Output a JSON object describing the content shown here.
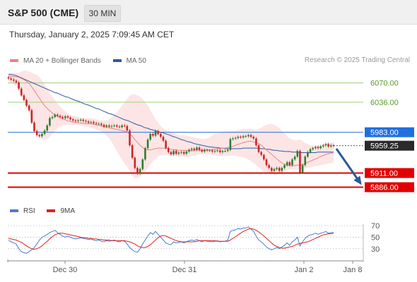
{
  "header": {
    "title": "S&P 500 (CME)",
    "timeframe_label": "30 MIN"
  },
  "timestamp": "Thursday, January 2, 2025 7:09:45 AM CET",
  "legend": {
    "items": [
      {
        "label": "MA 20 + Bollinger Bands",
        "color": "#f08080"
      },
      {
        "label": "MA 50",
        "color": "#2d5aa0"
      }
    ]
  },
  "credit": "Research © 2025 Trading Central",
  "rsi_legend": {
    "items": [
      {
        "label": "RSI",
        "color": "#4a7bd0"
      },
      {
        "label": "9MA",
        "color": "#e02020"
      }
    ]
  },
  "colors": {
    "candle_up": "#2e7d32",
    "candle_down": "#c62828",
    "bollinger_fill": "#fde0e0",
    "ma20": "#f08080",
    "ma50": "#2d5aa0",
    "level_green": "#9bd27a",
    "level_blue": "#2d6ed0",
    "level_red": "#e00000",
    "arrow": "#2a5a9c"
  },
  "chart_data": [
    {
      "type": "candlestick",
      "title": "",
      "x_tick_labels": [
        "Dec 30",
        "Dec 31",
        "Jan 2",
        "Jan 8"
      ],
      "ylim": [
        5868,
        6092
      ],
      "levels": [
        {
          "value": 6070.0,
          "label": "6070.00",
          "style": "green-line"
        },
        {
          "value": 6036.0,
          "label": "6036.00",
          "style": "green-line"
        },
        {
          "value": 5983.0,
          "label": "5983.00",
          "style": "blue-box"
        },
        {
          "value": 5959.25,
          "label": "5959.25",
          "style": "dark-box"
        },
        {
          "value": 5911.0,
          "label": "5911.00",
          "style": "red-box"
        },
        {
          "value": 5886.0,
          "label": "5886.00",
          "style": "red-box"
        }
      ],
      "close": [
        6078,
        6076,
        6074,
        6071,
        6060,
        6048,
        6040,
        6030,
        6022,
        6000,
        5985,
        5978,
        5976,
        5980,
        5986,
        5995,
        6008,
        6010,
        6014,
        6012,
        6010,
        6008,
        6011,
        6009,
        6006,
        6004,
        6003,
        6004,
        6005,
        6003,
        6002,
        6000,
        6001,
        5999,
        5998,
        5998,
        5996,
        5993,
        5995,
        5993,
        5994,
        5995,
        5993,
        5992,
        5995,
        5994,
        5986,
        5960,
        5938,
        5920,
        5910,
        5918,
        5935,
        5955,
        5970,
        5980,
        5977,
        5985,
        5980,
        5975,
        5968,
        5955,
        5948,
        5944,
        5950,
        5945,
        5947,
        5948,
        5945,
        5949,
        5952,
        5954,
        5952,
        5956,
        5952,
        5949,
        5952,
        5951,
        5951,
        5949,
        5950,
        5951,
        5948,
        5950,
        5950,
        5952,
        5971,
        5972,
        5973,
        5975,
        5974,
        5976,
        5976,
        5978,
        5975,
        5972,
        5960,
        5948,
        5943,
        5935,
        5925,
        5920,
        5915,
        5918,
        5920,
        5915,
        5920,
        5925,
        5930,
        5925,
        5935,
        5940,
        5950,
        5912,
        5925,
        5940,
        5948,
        5953,
        5955,
        5957,
        5955,
        5958,
        5960,
        5962,
        5958,
        5960,
        5959.25
      ],
      "ma20": [
        6082,
        6082,
        6081,
        6081,
        6080,
        6078,
        6076,
        6073,
        6069,
        6063,
        6057,
        6050,
        6043,
        6036,
        6030,
        6025,
        6021,
        6017,
        6014,
        6011,
        6009,
        6007,
        6005,
        6003,
        6002,
        6001,
        6000,
        6000,
        5999,
        5999,
        5998,
        5998,
        5998,
        5997,
        5996,
        5995,
        5994,
        5993,
        5992,
        5991,
        5990,
        5989,
        5988,
        5987,
        5986,
        5985,
        5983,
        5980,
        5976,
        5970,
        5965,
        5960,
        5956,
        5953,
        5952,
        5952,
        5953,
        5954,
        5955,
        5955,
        5955,
        5955,
        5954,
        5953,
        5952,
        5952,
        5951,
        5951,
        5951,
        5951,
        5951,
        5950,
        5951,
        5952,
        5951,
        5951,
        5952,
        5952,
        5952,
        5953,
        5953,
        5954,
        5954,
        5955,
        5955,
        5956,
        5957,
        5958,
        5960,
        5962,
        5963,
        5965,
        5966,
        5967,
        5967,
        5966,
        5965,
        5963,
        5960,
        5956,
        5952,
        5948,
        5944,
        5940,
        5936,
        5932,
        5929,
        5926,
        5925,
        5924,
        5924,
        5924,
        5925,
        5925,
        5926,
        5928,
        5930,
        5932,
        5934,
        5936,
        5938,
        5940,
        5942,
        5944,
        5945,
        5946,
        5947
      ],
      "bb_upper": [
        6088,
        6088,
        6088,
        6088,
        6088,
        6090,
        6092,
        6092,
        6090,
        6088,
        6086,
        6084,
        6080,
        6075,
        6068,
        6060,
        6052,
        6046,
        6040,
        6034,
        6028,
        6024,
        6020,
        6016,
        6013,
        6012,
        6011,
        6010,
        6009,
        6008,
        6008,
        6008,
        6008,
        6007,
        6006,
        6005,
        6004,
        6003,
        6004,
        6006,
        6010,
        6014,
        6018,
        6024,
        6030,
        6036,
        6042,
        6048,
        6050,
        6050,
        6048,
        6046,
        6042,
        6036,
        6030,
        6022,
        6014,
        6006,
        6000,
        5994,
        5990,
        5987,
        5985,
        5984,
        5982,
        5980,
        5978,
        5978,
        5978,
        5977,
        5976,
        5975,
        5974,
        5973,
        5972,
        5971,
        5971,
        5972,
        5974,
        5978,
        5980,
        5981,
        5982,
        5983,
        5984,
        5985,
        5985,
        5985,
        5986,
        5987,
        5988,
        5989,
        5989,
        5989,
        5989,
        5988,
        5987,
        5989,
        5991,
        5994,
        5996,
        5997,
        5998,
        5996,
        5994,
        5990,
        5986,
        5981,
        5976,
        5972,
        5970,
        5969,
        5969,
        5970,
        5968,
        5964,
        5962,
        5960,
        5959,
        5959,
        5960,
        5961,
        5962,
        5963,
        5964,
        5965,
        5966
      ],
      "bb_lower": [
        6072,
        6070,
        6068,
        6064,
        6058,
        6050,
        6040,
        6030,
        6018,
        6004,
        5992,
        5982,
        5974,
        5970,
        5969,
        5971,
        5975,
        5980,
        5986,
        5990,
        5993,
        5995,
        5996,
        5996,
        5996,
        5996,
        5996,
        5995,
        5995,
        5994,
        5993,
        5992,
        5991,
        5990,
        5988,
        5986,
        5984,
        5981,
        5977,
        5972,
        5966,
        5958,
        5950,
        5942,
        5934,
        5928,
        5922,
        5914,
        5906,
        5902,
        5902,
        5904,
        5908,
        5914,
        5920,
        5926,
        5932,
        5937,
        5940,
        5942,
        5943,
        5943,
        5943,
        5943,
        5942,
        5941,
        5940,
        5940,
        5940,
        5940,
        5940,
        5941,
        5942,
        5943,
        5944,
        5944,
        5944,
        5944,
        5944,
        5943,
        5942,
        5941,
        5941,
        5941,
        5941,
        5941,
        5942,
        5942,
        5942,
        5941,
        5940,
        5939,
        5937,
        5935,
        5932,
        5929,
        5925,
        5921,
        5917,
        5914,
        5912,
        5910,
        5909,
        5908,
        5908,
        5909,
        5911,
        5914,
        5916,
        5917,
        5917,
        5917,
        5917,
        5917,
        5918,
        5919,
        5920,
        5921,
        5922,
        5923,
        5924,
        5925,
        5926,
        5927,
        5928,
        5929,
        5930
      ],
      "ma50": [
        6085,
        6085,
        6084,
        6083,
        6081,
        6079,
        6077,
        6075,
        6073,
        6071,
        6069,
        6067,
        6065,
        6063,
        6061,
        6059,
        6057,
        6055,
        6053,
        6052,
        6050,
        6048,
        6046,
        6045,
        6043,
        6041,
        6039,
        6038,
        6036,
        6034,
        6032,
        6031,
        6029,
        6027,
        6025,
        6024,
        6022,
        6020,
        6018,
        6016,
        6015,
        6013,
        6011,
        6009,
        6007,
        6005,
        6004,
        6002,
        6000,
        5998,
        5996,
        5995,
        5993,
        5991,
        5990,
        5988,
        5987,
        5986,
        5984,
        5983,
        5982,
        5980,
        5979,
        5977,
        5975,
        5974,
        5972,
        5970,
        5969,
        5967,
        5966,
        5965,
        5963,
        5962,
        5961,
        5960,
        5959,
        5958,
        5957,
        5957,
        5956,
        5956,
        5955,
        5955,
        5954,
        5954,
        5954,
        5954,
        5954,
        5954,
        5954,
        5955,
        5955,
        5955,
        5955,
        5955,
        5955,
        5955,
        5954,
        5954,
        5953,
        5953,
        5952,
        5951,
        5951,
        5950,
        5950,
        5949,
        5949,
        5949,
        5948,
        5948,
        5948,
        5947,
        5947,
        5947,
        5947,
        5947,
        5947,
        5947,
        5948,
        5948,
        5948,
        5948,
        5948,
        5948,
        5948
      ]
    },
    {
      "type": "line",
      "title": "",
      "ylim": [
        15,
        80
      ],
      "y_tick_labels": [
        70,
        50,
        30
      ],
      "series": [
        {
          "name": "RSI",
          "values": [
            45,
            42,
            40,
            38,
            30,
            25,
            23,
            22,
            25,
            28,
            32,
            38,
            45,
            50,
            52,
            55,
            58,
            60,
            62,
            58,
            55,
            52,
            50,
            52,
            50,
            48,
            47,
            48,
            49,
            48,
            47,
            46,
            47,
            45,
            44,
            45,
            43,
            42,
            44,
            43,
            44,
            45,
            43,
            42,
            44,
            43,
            38,
            32,
            28,
            25,
            24,
            30,
            38,
            45,
            52,
            58,
            55,
            60,
            55,
            50,
            45,
            40,
            38,
            37,
            42,
            40,
            41,
            42,
            40,
            42,
            44,
            45,
            44,
            46,
            44,
            42,
            44,
            43,
            43,
            42,
            43,
            44,
            42,
            43,
            43,
            45,
            60,
            62,
            63,
            65,
            64,
            66,
            66,
            68,
            64,
            60,
            52,
            45,
            42,
            38,
            33,
            30,
            28,
            30,
            32,
            30,
            33,
            36,
            40,
            36,
            42,
            45,
            50,
            35,
            42,
            48,
            52,
            54,
            55,
            57,
            55,
            57,
            58,
            60,
            57,
            58,
            58
          ]
        },
        {
          "name": "9MA",
          "values": [
            48,
            47,
            46,
            45,
            43,
            41,
            38,
            35,
            32,
            30,
            29,
            30,
            32,
            35,
            39,
            43,
            47,
            51,
            54,
            56,
            57,
            57,
            56,
            55,
            54,
            53,
            52,
            51,
            50,
            49,
            49,
            48,
            48,
            47,
            47,
            46,
            46,
            45,
            45,
            45,
            44,
            44,
            44,
            44,
            44,
            44,
            43,
            42,
            40,
            38,
            35,
            33,
            32,
            32,
            34,
            37,
            41,
            45,
            49,
            52,
            53,
            52,
            50,
            48,
            46,
            44,
            43,
            42,
            42,
            42,
            42,
            42,
            42,
            43,
            44,
            44,
            44,
            44,
            44,
            44,
            44,
            43,
            43,
            43,
            43,
            43,
            45,
            48,
            51,
            54,
            57,
            60,
            62,
            64,
            65,
            64,
            62,
            59,
            56,
            52,
            48,
            44,
            40,
            36,
            34,
            32,
            31,
            31,
            32,
            33,
            34,
            36,
            38,
            39,
            40,
            41,
            42,
            44,
            46,
            48,
            50,
            52,
            54,
            55,
            56,
            56,
            57
          ]
        }
      ]
    }
  ]
}
